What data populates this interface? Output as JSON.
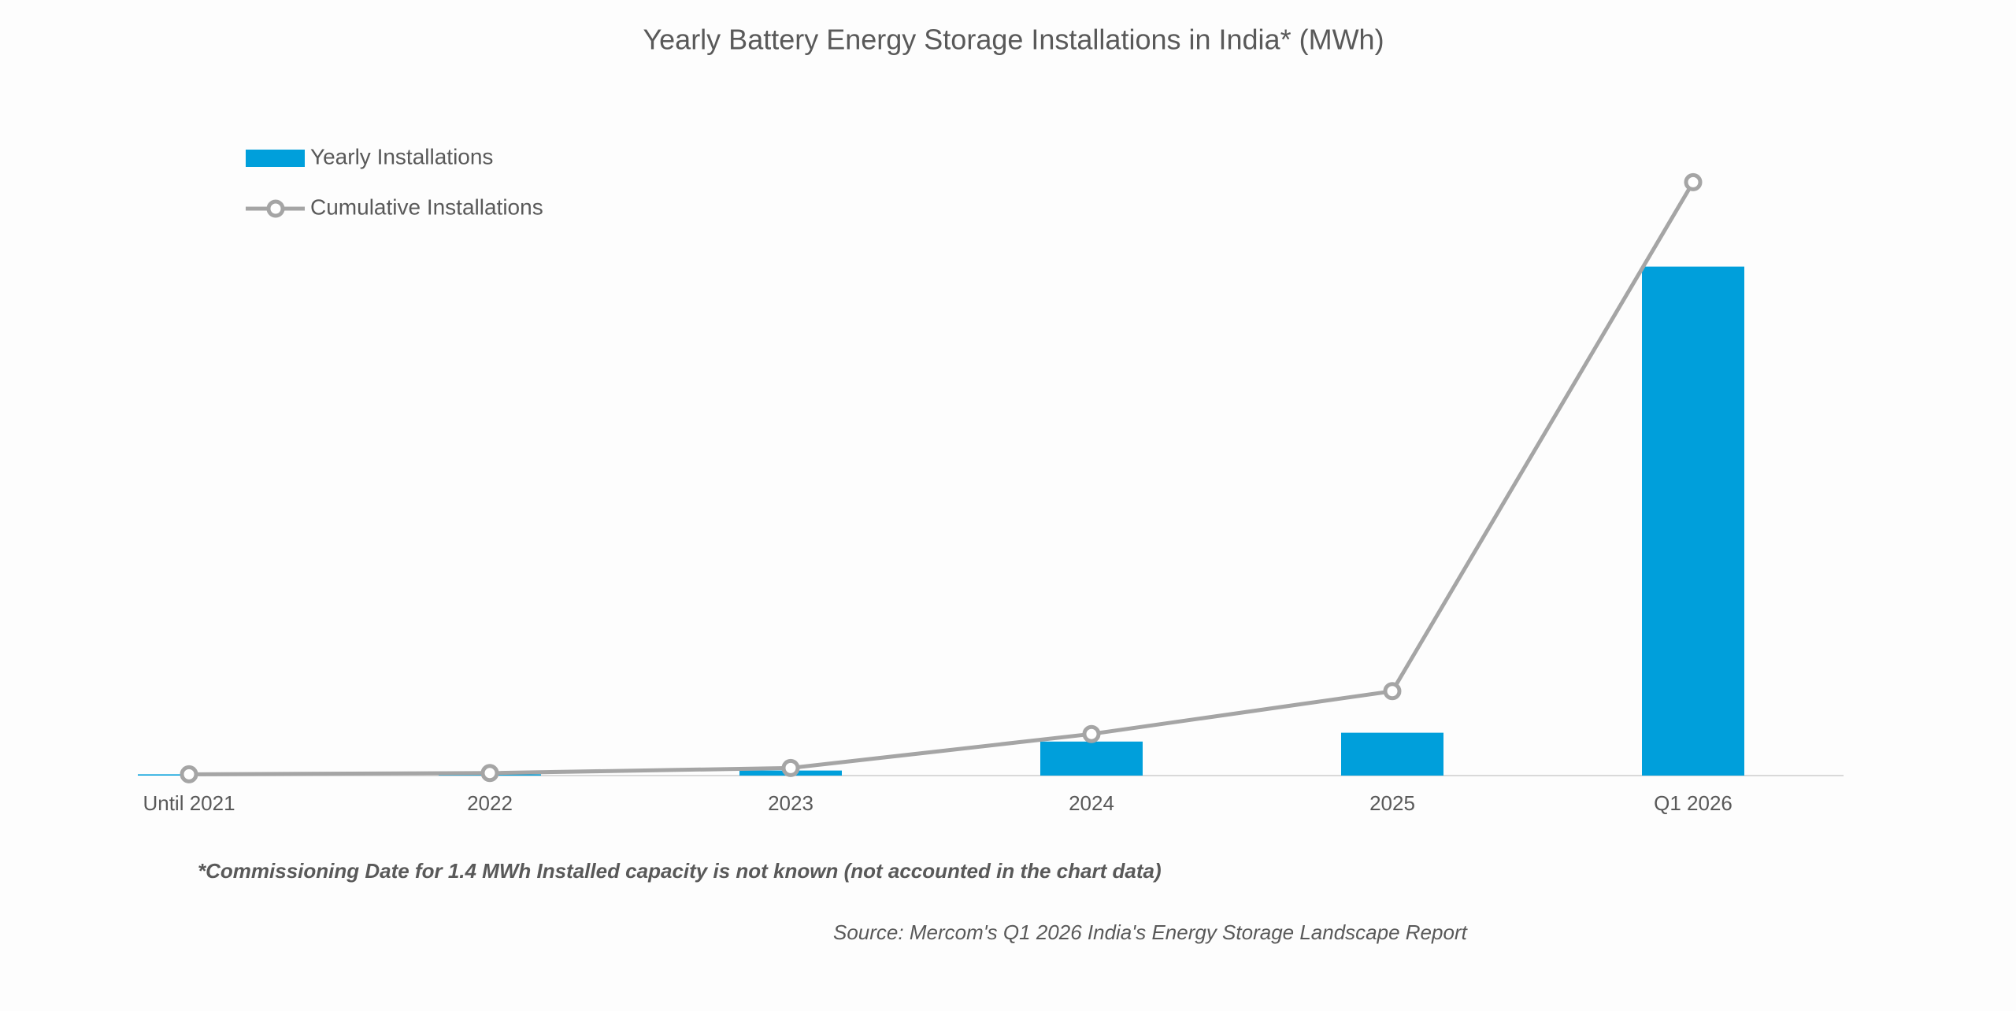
{
  "chart_data": {
    "type": "bar_line",
    "title": "Yearly Battery Energy Storage Installations in India* (MWh)",
    "categories": [
      "Until 2021",
      "2022",
      "2023",
      "2024",
      "2025",
      "Q1 2026"
    ],
    "series": [
      {
        "name": "Yearly Installations",
        "color": "#009fdb",
        "type": "bar",
        "values": [
          1,
          1,
          4,
          27,
          34,
          404
        ]
      },
      {
        "name": "Cumulative Installations",
        "color": "#a5a5a5",
        "type": "line",
        "values": [
          1,
          2,
          6,
          33,
          67,
          471
        ]
      }
    ],
    "ylim": [
      0,
      500
    ],
    "legend": "top-left",
    "footnote": "*Commissioning Date for 1.4 MWh Installed capacity is not known (not accounted in the chart data)",
    "source": "Source: Mercom's Q1 2026 India's Energy Storage Landscape Report"
  }
}
